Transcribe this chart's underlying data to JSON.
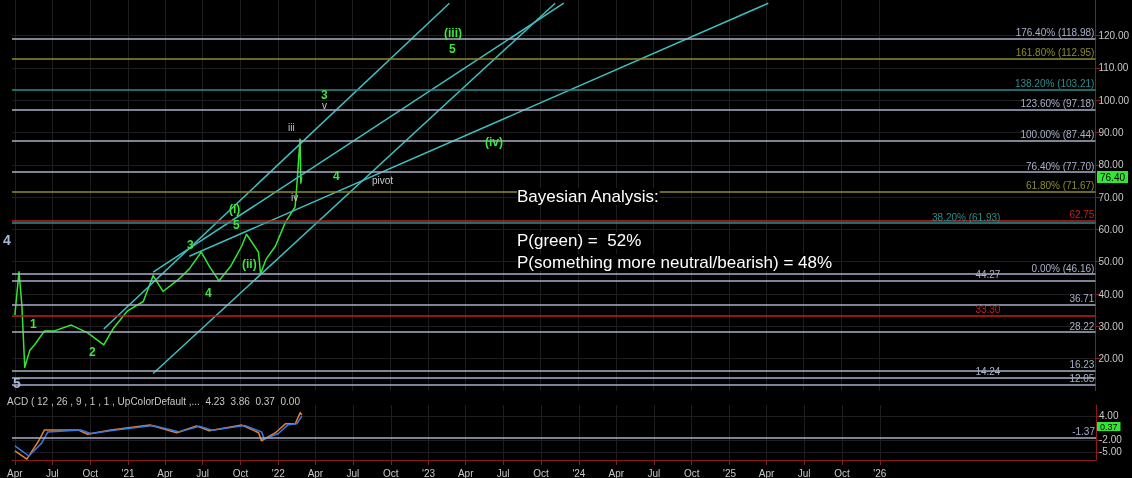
{
  "chart_data": [
    {
      "type": "line",
      "xlim": [
        "2020-03-25",
        "2027-06-10"
      ],
      "ylim": [
        10,
        131
      ],
      "tick_labels": "y",
      "grid": true,
      "marker": "none",
      "line_style": "solid",
      "xticks": [
        {
          "value": "2020-04-01",
          "label": null
        },
        {
          "value": "2020-07-01",
          "label": null
        },
        {
          "value": "2020-10-01",
          "label": null
        },
        {
          "value": "2021-01-01",
          "label": null
        },
        {
          "value": "2021-04-01",
          "label": null
        },
        {
          "value": "2021-07-01",
          "label": null
        },
        {
          "value": "2021-10-01",
          "label": null
        },
        {
          "value": "2022-01-01",
          "label": null
        },
        {
          "value": "2022-04-01",
          "label": null
        },
        {
          "value": "2022-07-01",
          "label": null
        },
        {
          "value": "2022-10-01",
          "label": null
        },
        {
          "value": "2023-01-01",
          "label": null
        },
        {
          "value": "2023-04-01",
          "label": null
        },
        {
          "value": "2023-07-01",
          "label": null
        },
        {
          "value": "2023-10-01",
          "label": null
        },
        {
          "value": "2024-01-01",
          "label": null
        },
        {
          "value": "2024-04-01",
          "label": null
        },
        {
          "value": "2024-07-01",
          "label": null
        },
        {
          "value": "2024-10-01",
          "label": null
        },
        {
          "value": "2025-01-01",
          "label": null
        },
        {
          "value": "2025-04-01",
          "label": null
        },
        {
          "value": "2025-07-01",
          "label": null
        },
        {
          "value": "2025-10-01",
          "label": null
        },
        {
          "value": "2026-01-01",
          "label": null
        }
      ],
      "yticks": [
        {
          "value": 20,
          "label": "20.00"
        },
        {
          "value": 30,
          "label": "30.00"
        },
        {
          "value": 40,
          "label": "40.00"
        },
        {
          "value": 50,
          "label": "50.00"
        },
        {
          "value": 60,
          "label": "60.00"
        },
        {
          "value": 70,
          "label": "70.00"
        },
        {
          "value": 80,
          "label": "80.00"
        },
        {
          "value": 90,
          "label": "90.00"
        },
        {
          "value": 100,
          "label": "100.00"
        },
        {
          "value": 110,
          "label": "110.00"
        },
        {
          "value": 120,
          "label": "120.00"
        }
      ],
      "series": [
        {
          "color": "#33e633",
          "x": [
            "2020-04-01",
            "2020-04-11",
            "2020-04-18",
            "2020-04-25",
            "2020-05-07",
            "2020-05-19",
            "2020-06-12",
            "2020-07-06",
            "2020-08-16",
            "2020-09-25",
            "2020-11-03",
            "2020-11-27",
            "2020-12-30",
            "2021-02-07",
            "2021-03-03",
            "2021-03-27",
            "2021-05-06",
            "2021-05-30",
            "2021-06-28",
            "2021-07-17",
            "2021-08-10",
            "2021-09-08",
            "2021-10-04",
            "2021-10-16",
            "2021-11-14",
            "2021-11-19",
            "2021-12-03",
            "2021-12-25",
            "2022-01-18",
            "2022-02-11",
            "2022-02-15",
            "2022-02-23",
            "2022-02-25",
            "2022-02-27"
          ],
          "values": [
            33.5,
            46.9,
            36.5,
            17.3,
            22.5,
            24.3,
            28.6,
            28.6,
            30.4,
            28,
            24.3,
            29.5,
            34.7,
            37.7,
            45.7,
            40.8,
            44.8,
            47.8,
            53,
            48.7,
            44.1,
            48.7,
            54.8,
            58.5,
            53,
            46.3,
            50.9,
            54.8,
            62.1,
            67,
            73.1,
            88,
            74.3,
            76.4
          ]
        },
        {
          "color": "#3fbfbf",
          "x": [
            "2020-11-03",
            "2023-02-21"
          ],
          "values": [
            29.2,
            130
          ]
        },
        {
          "color": "#3fbfbf",
          "x": [
            "2021-03-03",
            "2023-11-26"
          ],
          "values": [
            46.8,
            130
          ]
        },
        {
          "color": "#3fbfbf",
          "x": [
            "2021-03-03",
            "2023-11-05"
          ],
          "values": [
            15.4,
            130
          ]
        },
        {
          "color": "#3fbfbf",
          "x": [
            "2021-05-30",
            "2025-04-06"
          ],
          "values": [
            51.7,
            130
          ]
        }
      ],
      "ref_lines": [
        {
          "axis": "y",
          "value": 118.98,
          "label": "176.40% (118.98)",
          "color": "#a8b0c8"
        },
        {
          "axis": "y",
          "value": 112.95,
          "label": "161.80% (112.95)",
          "color": "#8c8c2e"
        },
        {
          "axis": "y",
          "value": 103.21,
          "label": "138.20% (103.21)",
          "color": "#2e8c8c"
        },
        {
          "axis": "y",
          "value": 97.18,
          "label": "123.60% (97.18)",
          "color": "#a8b0c8"
        },
        {
          "axis": "y",
          "value": 87.44,
          "label": "100.00% (87.44)",
          "color": "#a8b0c8"
        },
        {
          "axis": "y",
          "value": 77.7,
          "label": "76.40% (77.70)",
          "color": "#a8b0c8"
        },
        {
          "axis": "y",
          "value": 71.67,
          "label": "61.80% (71.67)",
          "color": "#8c8c2e"
        },
        {
          "axis": "y",
          "value": 62.75,
          "label": "62.75",
          "color": "#c02020"
        },
        {
          "axis": "y",
          "value": 61.93,
          "label": "38.20% (61.93)",
          "color": "#2e8c8c"
        },
        {
          "axis": "y",
          "value": 46.16,
          "label": "0.00% (46.16)",
          "color": "#a8b0c8"
        },
        {
          "axis": "y",
          "value": 44.27,
          "label": "44.27",
          "color": "#a8b0c8"
        },
        {
          "axis": "y",
          "value": 36.71,
          "label": "36.71",
          "color": "#a8b0c8"
        },
        {
          "axis": "y",
          "value": 33.3,
          "label": "33.30",
          "color": "#c02020"
        },
        {
          "axis": "y",
          "value": 28.22,
          "label": "28.22",
          "color": "#a8b0c8"
        },
        {
          "axis": "y",
          "value": 16.23,
          "label": "16.23",
          "color": "#a8b0c8"
        },
        {
          "axis": "y",
          "value": 14.24,
          "label": "14.24",
          "color": "#a8b0c8"
        },
        {
          "axis": "y",
          "value": 12.05,
          "label": "12.05",
          "color": "#a8b0c8"
        }
      ],
      "annotations": [
        "Bayesian Analysis:",
        "P(green) =  52%",
        "P(something more neutral/bearish) = 48%",
        "(iii)",
        "5",
        "3",
        "v",
        "(iv)",
        "iii",
        "4",
        "pivot",
        "iv",
        "(i)",
        "5",
        "3",
        "4",
        "(ii)",
        "4",
        "5",
        "1",
        "2",
        "76.40"
      ]
    },
    {
      "type": "line",
      "title": "ACD ( 12 , 26 , 9 , 1 , 1 , UpColorDefault ,...  4.23  3.86  0.37  0.00",
      "xlim": [
        "2020-03-25",
        "2027-06-10"
      ],
      "ylim": [
        -7,
        6.7
      ],
      "grid": true,
      "marker": "none",
      "line_style": "solid",
      "xticks": [
        {
          "value": "2020-04-01",
          "label": "Apr"
        },
        {
          "value": "2020-07-01",
          "label": "Jul"
        },
        {
          "value": "2020-10-01",
          "label": "Oct"
        },
        {
          "value": "2021-01-01",
          "label": "'21"
        },
        {
          "value": "2021-04-01",
          "label": "Apr"
        },
        {
          "value": "2021-07-01",
          "label": "Jul"
        },
        {
          "value": "2021-10-01",
          "label": "Oct"
        },
        {
          "value": "2022-01-01",
          "label": "'22"
        },
        {
          "value": "2022-04-01",
          "label": "Apr"
        },
        {
          "value": "2022-07-01",
          "label": "Jul"
        },
        {
          "value": "2022-10-01",
          "label": "Oct"
        },
        {
          "value": "2023-01-01",
          "label": "'23"
        },
        {
          "value": "2023-04-01",
          "label": "Apr"
        },
        {
          "value": "2023-07-01",
          "label": "Jul"
        },
        {
          "value": "2023-10-01",
          "label": "Oct"
        },
        {
          "value": "2024-01-01",
          "label": "'24"
        },
        {
          "value": "2024-04-01",
          "label": "Apr"
        },
        {
          "value": "2024-07-01",
          "label": "Jul"
        },
        {
          "value": "2024-10-01",
          "label": "Oct"
        },
        {
          "value": "2025-01-01",
          "label": "'25"
        },
        {
          "value": "2025-04-01",
          "label": "Apr"
        },
        {
          "value": "2025-07-01",
          "label": "Jul"
        },
        {
          "value": "2025-10-01",
          "label": "Oct"
        },
        {
          "value": "2026-01-01",
          "label": "'26"
        }
      ],
      "yticks": [
        {
          "value": 4,
          "label": "4.00"
        },
        {
          "value": -2,
          "label": "-2.00"
        },
        {
          "value": -5,
          "label": "-5.00"
        }
      ],
      "series": [
        {
          "color": "#e0803a",
          "x": [
            "2020-04-01",
            "2020-04-30",
            "2020-05-29",
            "2020-06-12",
            "2020-09-01",
            "2020-09-25",
            "2020-11-20",
            "2021-02-23",
            "2021-04-29",
            "2021-06-16",
            "2021-07-17",
            "2021-10-04",
            "2021-11-14",
            "2021-11-21",
            "2021-12-25",
            "2022-01-18",
            "2022-02-11",
            "2022-02-23",
            "2022-02-27"
          ],
          "values": [
            -4.7,
            -6.8,
            -2.2,
            0.5,
            0.5,
            -0.6,
            0.5,
            1.7,
            -0.2,
            1.5,
            0.3,
            1.7,
            -0.2,
            -2.2,
            -0.2,
            2,
            2,
            4.8,
            4.2
          ]
        },
        {
          "color": "#3a7ae0",
          "x": [
            "2020-04-01",
            "2020-05-05",
            "2020-06-05",
            "2020-06-20",
            "2020-09-08",
            "2020-10-02",
            "2020-11-28",
            "2021-03-02",
            "2021-05-06",
            "2021-06-23",
            "2021-07-24",
            "2021-10-11",
            "2021-11-21",
            "2021-11-28",
            "2022-01-01",
            "2022-01-25",
            "2022-02-15",
            "2022-02-27"
          ],
          "values": [
            -3.5,
            -6,
            -2.8,
            0,
            0.5,
            -0.4,
            0.4,
            1.6,
            0,
            1.4,
            0.4,
            1.6,
            0,
            -1.8,
            -0.4,
            1.8,
            2,
            3.9
          ]
        }
      ],
      "ref_lines": [
        {
          "axis": "y",
          "value": -1.37,
          "label": "-1.37",
          "color": "#a8b0c8"
        }
      ],
      "annotations": [
        "0.37"
      ]
    }
  ]
}
